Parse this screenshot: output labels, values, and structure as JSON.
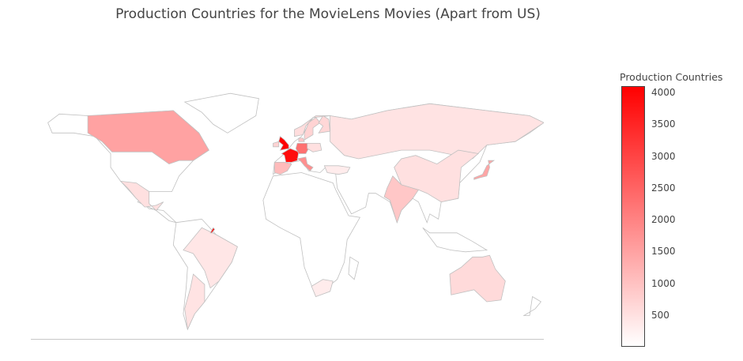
{
  "chart_data": {
    "type": "choropleth",
    "title": "Production Countries for the MovieLens Movies (Apart from US)",
    "colorbar": {
      "title": "Production Countries",
      "min": 0,
      "max": 4100,
      "ticks": [
        500,
        1000,
        1500,
        2000,
        2500,
        3000,
        3500,
        4000
      ],
      "color_low": "#ffffff",
      "color_high": "#ff0000"
    },
    "values": {
      "United Kingdom": 4100,
      "France": 3900,
      "Germany": 2300,
      "Italy": 1800,
      "Canada": 1500,
      "Japan": 1450,
      "Spain": 1100,
      "India": 900,
      "Sweden": 700,
      "Finland": 650,
      "Norway": 550,
      "Poland": 500,
      "Russia": 450,
      "China": 500,
      "Australia": 600,
      "Mexico": 500,
      "Brazil": 400,
      "Argentina": 450,
      "South Africa": 300,
      "Turkey": 300,
      "Ireland": 700,
      "Denmark": 900
    }
  }
}
